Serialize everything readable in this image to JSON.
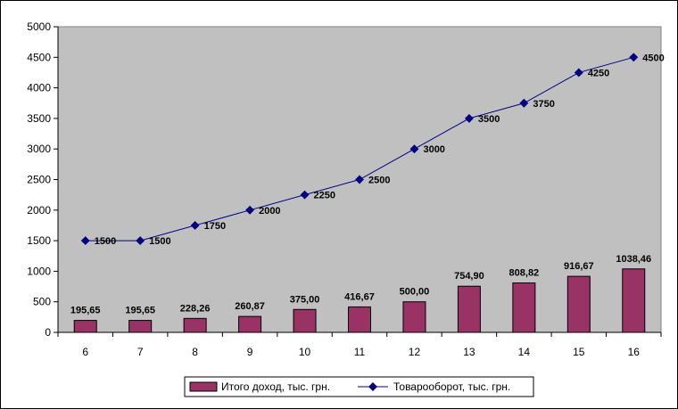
{
  "chart_data": {
    "type": "bar",
    "categories": [
      "6",
      "7",
      "8",
      "9",
      "10",
      "11",
      "12",
      "13",
      "14",
      "15",
      "16"
    ],
    "series": [
      {
        "name": "Итого доход, тыс. грн.",
        "type": "bar",
        "values": [
          195.65,
          195.65,
          228.26,
          260.87,
          375.0,
          416.67,
          500.0,
          754.9,
          808.82,
          916.67,
          1038.46
        ],
        "labels": [
          "195,65",
          "195,65",
          "228,26",
          "260,87",
          "375,00",
          "416,67",
          "500,00",
          "754,90",
          "808,82",
          "916,67",
          "1038,46"
        ],
        "color": "#993366"
      },
      {
        "name": "Товарооборот, тыс. грн.",
        "type": "line",
        "values": [
          1500,
          1500,
          1750,
          2000,
          2250,
          2500,
          3000,
          3500,
          3750,
          4250,
          4500
        ],
        "labels": [
          "1500",
          "1500",
          "1750",
          "2000",
          "2250",
          "2500",
          "3000",
          "3500",
          "3750",
          "4250",
          "4500"
        ],
        "color": "#000080"
      }
    ],
    "ylim": [
      0,
      5000
    ],
    "yticks": [
      "0",
      "500",
      "1000",
      "1500",
      "2000",
      "2500",
      "3000",
      "3500",
      "4000",
      "4500",
      "5000"
    ],
    "plot_background": "#c0c0c0",
    "grid": false,
    "legend_position": "bottom"
  }
}
